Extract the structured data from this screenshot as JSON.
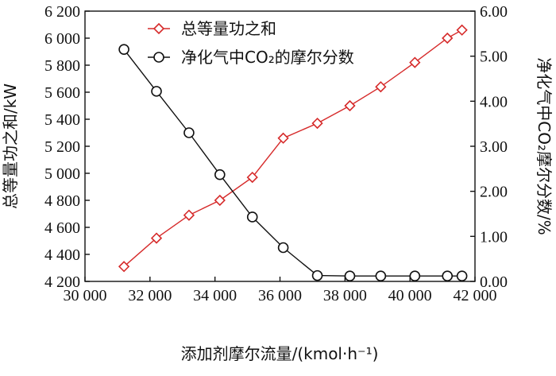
{
  "chart_data": {
    "type": "line",
    "xlabel": "添加剂摩尔流量/(kmol·h⁻¹)",
    "ylabel_left": "总等量功之和/kW",
    "ylabel_right": "净化气中CO₂摩尔分数/%",
    "xlim": [
      30000,
      42000
    ],
    "ylim_left": [
      4200,
      6200
    ],
    "ylim_right": [
      0,
      6
    ],
    "x_ticks": [
      30000,
      32000,
      34000,
      36000,
      38000,
      40000,
      42000
    ],
    "x_tick_labels": [
      "30 000",
      "32 000",
      "34 000",
      "36 000",
      "38 000",
      "40 000",
      "42 000"
    ],
    "y_left_ticks": [
      4200,
      4400,
      4600,
      4800,
      5000,
      5200,
      5400,
      5600,
      5800,
      6000,
      6200
    ],
    "y_left_tick_labels": [
      "4 200",
      "4 400",
      "4 600",
      "4 800",
      "5 000",
      "5 200",
      "5 400",
      "5 600",
      "5 800",
      "6 000",
      "6 200"
    ],
    "y_right_ticks": [
      0,
      1,
      2,
      3,
      4,
      5,
      6
    ],
    "y_right_tick_labels": [
      "0.00",
      "1.00",
      "2.00",
      "3.00",
      "4.00",
      "5.00",
      "6.00"
    ],
    "legend_position": "top-left",
    "grid": false,
    "series": [
      {
        "name": "总等量功之和",
        "axis": "left",
        "color": "#d62a2a",
        "marker": "diamond",
        "x": [
          31200,
          32200,
          33200,
          34150,
          35150,
          36100,
          37150,
          38150,
          39100,
          40150,
          41150,
          41600
        ],
        "values": [
          4310,
          4520,
          4690,
          4800,
          4970,
          5260,
          5370,
          5500,
          5640,
          5820,
          6000,
          6060
        ]
      },
      {
        "name": "净化气中CO₂的摩尔分数",
        "axis": "right",
        "color": "#111111",
        "marker": "circle",
        "x": [
          31200,
          32200,
          33200,
          34150,
          35150,
          36100,
          37150,
          38150,
          39100,
          40150,
          41150,
          41600
        ],
        "values": [
          5.15,
          4.22,
          3.3,
          2.37,
          1.43,
          0.75,
          0.13,
          0.12,
          0.12,
          0.12,
          0.12,
          0.12
        ]
      }
    ]
  }
}
